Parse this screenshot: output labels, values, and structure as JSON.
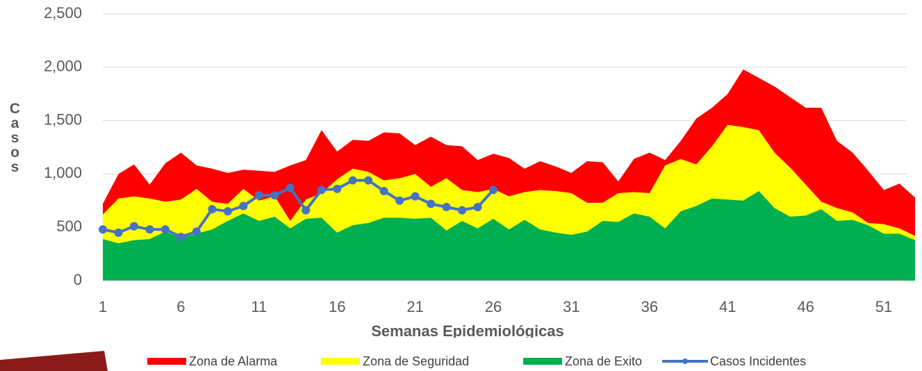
{
  "chart_data": {
    "type": "area",
    "x_label": "Semanas Epidemiológicas",
    "y_label": "Casos",
    "x": [
      1,
      2,
      3,
      4,
      5,
      6,
      7,
      8,
      9,
      10,
      11,
      12,
      13,
      14,
      15,
      16,
      17,
      18,
      19,
      20,
      21,
      22,
      23,
      24,
      25,
      26,
      27,
      28,
      29,
      30,
      31,
      32,
      33,
      34,
      35,
      36,
      37,
      38,
      39,
      40,
      41,
      42,
      43,
      44,
      45,
      46,
      47,
      48,
      49,
      50,
      51,
      52,
      53
    ],
    "xlim": [
      1,
      53
    ],
    "xticks": [
      1,
      6,
      11,
      16,
      21,
      26,
      31,
      36,
      41,
      46,
      51
    ],
    "ylim": [
      0,
      2500
    ],
    "yticks": [
      0,
      500,
      {
        "value": 1000,
        "label": "1,000"
      },
      {
        "value": 1500,
        "label": "1,500"
      },
      {
        "value": 2000,
        "label": "2,000"
      },
      {
        "value": 2500,
        "label": "2,500"
      }
    ],
    "grid": true,
    "legend": "bottom",
    "series": [
      {
        "name": "Zona de Alarma",
        "color": "#ff0000",
        "kind": "area",
        "values": [
          720,
          1000,
          1090,
          900,
          1100,
          1200,
          1080,
          1050,
          1010,
          1040,
          1030,
          1020,
          1080,
          1130,
          1410,
          1210,
          1320,
          1310,
          1390,
          1380,
          1270,
          1350,
          1270,
          1260,
          1130,
          1190,
          1150,
          1050,
          1120,
          1070,
          1010,
          1120,
          1110,
          930,
          1140,
          1200,
          1130,
          1310,
          1520,
          1620,
          1750,
          1980,
          1900,
          1820,
          1720,
          1620,
          1620,
          1310,
          1200,
          1030,
          850,
          910,
          780
        ]
      },
      {
        "name": "Zona de Seguridad",
        "color": "#ffff00",
        "kind": "area",
        "values": [
          620,
          770,
          790,
          770,
          740,
          760,
          860,
          740,
          720,
          860,
          750,
          790,
          560,
          760,
          820,
          950,
          1050,
          1020,
          940,
          960,
          1000,
          880,
          960,
          850,
          830,
          860,
          790,
          830,
          850,
          840,
          820,
          730,
          730,
          820,
          830,
          820,
          1080,
          1140,
          1090,
          1260,
          1460,
          1440,
          1410,
          1200,
          1060,
          900,
          740,
          680,
          640,
          540,
          530,
          490,
          420
        ]
      },
      {
        "name": "Zona de Exito",
        "color": "#00b050",
        "kind": "area",
        "values": [
          390,
          350,
          380,
          390,
          460,
          400,
          440,
          480,
          560,
          630,
          560,
          600,
          490,
          580,
          590,
          450,
          520,
          540,
          590,
          590,
          580,
          590,
          470,
          560,
          490,
          580,
          480,
          570,
          480,
          450,
          430,
          460,
          560,
          550,
          630,
          600,
          490,
          650,
          700,
          770,
          760,
          750,
          840,
          680,
          600,
          610,
          670,
          560,
          570,
          520,
          440,
          440,
          380
        ]
      },
      {
        "name": "Casos Incidentes",
        "color": "#4472c4",
        "kind": "line",
        "values": [
          480,
          450,
          510,
          480,
          480,
          410,
          460,
          670,
          650,
          700,
          800,
          800,
          870,
          660,
          850,
          860,
          940,
          940,
          840,
          750,
          790,
          720,
          690,
          660,
          690,
          850,
          null,
          null,
          null,
          null,
          null,
          null,
          null,
          null,
          null,
          null,
          null,
          null,
          null,
          null,
          null,
          null,
          null,
          null,
          null,
          null,
          null,
          null,
          null,
          null,
          null,
          null,
          null
        ]
      }
    ]
  }
}
